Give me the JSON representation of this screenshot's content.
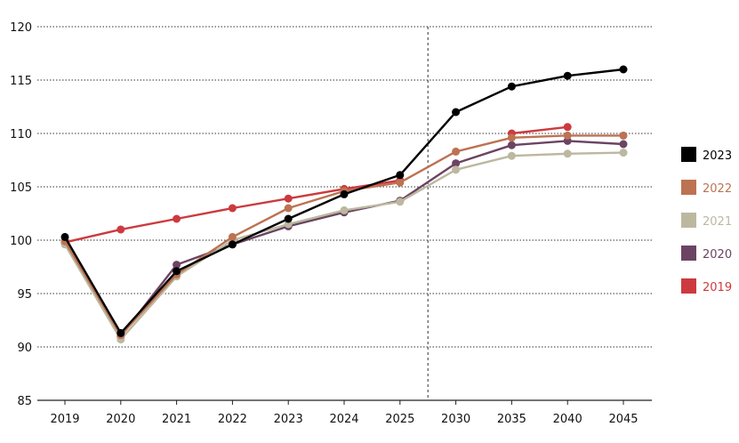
{
  "chart_data": {
    "type": "line",
    "title": "",
    "xlabel": "",
    "ylabel": "",
    "categories": [
      "2019",
      "2020",
      "2021",
      "2022",
      "2023",
      "2024",
      "2025",
      "2030",
      "2035",
      "2040",
      "2045"
    ],
    "ylim": [
      85,
      120
    ],
    "yticks": [
      85,
      90,
      95,
      100,
      105,
      110,
      115,
      120
    ],
    "grid": "horizontal dotted",
    "legend_position": "right",
    "divider_between": [
      "2025",
      "2030"
    ],
    "series": [
      {
        "name": "2019",
        "color": "#cc3a3f",
        "values": [
          99.8,
          101.0,
          102.0,
          103.0,
          103.9,
          104.8,
          105.6,
          null,
          110.0,
          110.6,
          null
        ]
      },
      {
        "name": "2020",
        "color": "#6b4461",
        "values": [
          99.7,
          91.0,
          97.7,
          99.6,
          101.3,
          102.6,
          103.7,
          107.2,
          108.9,
          109.3,
          109.0
        ]
      },
      {
        "name": "2021",
        "color": "#bcb8a0",
        "values": [
          99.6,
          90.7,
          96.6,
          100.0,
          101.5,
          102.8,
          103.6,
          106.6,
          107.9,
          108.1,
          108.2
        ]
      },
      {
        "name": "2022",
        "color": "#bd7252",
        "values": [
          99.9,
          91.1,
          96.8,
          100.3,
          103.0,
          104.6,
          105.4,
          108.3,
          109.6,
          109.8,
          109.8
        ]
      },
      {
        "name": "2023",
        "color": "#000000",
        "values": [
          100.3,
          91.3,
          97.1,
          99.6,
          102.0,
          104.3,
          106.1,
          112.0,
          114.4,
          115.4,
          116.0
        ]
      }
    ],
    "legend": [
      "2023",
      "2022",
      "2021",
      "2020",
      "2019"
    ]
  }
}
